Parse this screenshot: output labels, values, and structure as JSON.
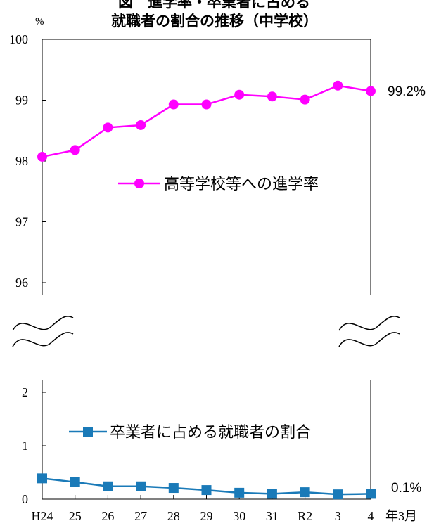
{
  "chart_data": [
    {
      "type": "line",
      "title_line1": "図　進学率・卒業者に占める",
      "title_line2": "就職者の割合の推移（中学校）",
      "yunit": "%",
      "categories": [
        "H24",
        "25",
        "26",
        "27",
        "28",
        "29",
        "30",
        "31",
        "R2",
        "3",
        "4"
      ],
      "x_suffix": "年3月",
      "ylim": [
        96,
        100
      ],
      "yticks": [
        "96",
        "97",
        "98",
        "99",
        "100"
      ],
      "series": [
        {
          "name": "高等学校等への進学率",
          "color": "#ff00ff",
          "marker": "circle",
          "values": [
            98.07,
            98.18,
            98.55,
            98.59,
            98.93,
            98.93,
            99.09,
            99.06,
            99.01,
            99.24,
            99.15
          ],
          "end_label": "99.2%"
        }
      ]
    },
    {
      "type": "line",
      "ylim": [
        0,
        2
      ],
      "yticks": [
        "0",
        "1",
        "2"
      ],
      "series": [
        {
          "name": "卒業者に占める就職者の割合",
          "color": "#1a7ab8",
          "marker": "square",
          "values": [
            0.39,
            0.32,
            0.24,
            0.24,
            0.21,
            0.17,
            0.12,
            0.1,
            0.13,
            0.09,
            0.1
          ],
          "end_label": "0.1%"
        }
      ]
    }
  ]
}
